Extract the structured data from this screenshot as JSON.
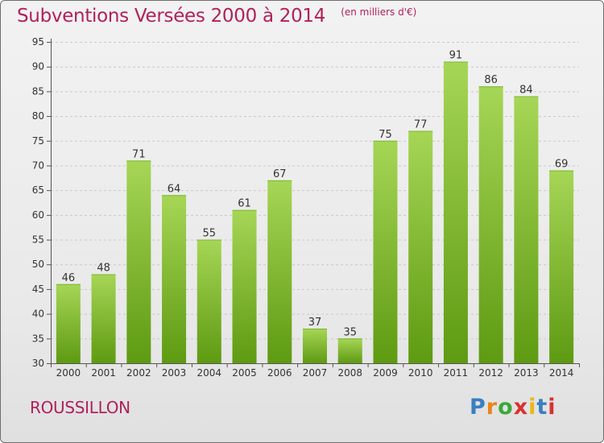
{
  "header": {
    "title": "Subventions Versées 2000 à 2014",
    "unit_note": "(en milliers d'€)"
  },
  "footer": {
    "commune": "ROUSSILLON",
    "brand": "Proxiti"
  },
  "colors": {
    "accent": "#b0215a",
    "bar_light": "#a6d656",
    "bar_dark": "#5e9a12"
  },
  "chart_data": {
    "type": "bar",
    "title": "Subventions Versées 2000 à 2014",
    "subtitle": "(en milliers d'€)",
    "categories": [
      "2000",
      "2001",
      "2002",
      "2003",
      "2004",
      "2005",
      "2006",
      "2007",
      "2008",
      "2009",
      "2010",
      "2011",
      "2012",
      "2013",
      "2014"
    ],
    "values": [
      46,
      48,
      71,
      64,
      55,
      61,
      67,
      37,
      35,
      75,
      77,
      91,
      86,
      84,
      69
    ],
    "ylim": [
      30,
      95
    ],
    "yticks": [
      30,
      35,
      40,
      45,
      50,
      55,
      60,
      65,
      70,
      75,
      80,
      85,
      90,
      95
    ],
    "grid": true,
    "data_labels": true
  }
}
